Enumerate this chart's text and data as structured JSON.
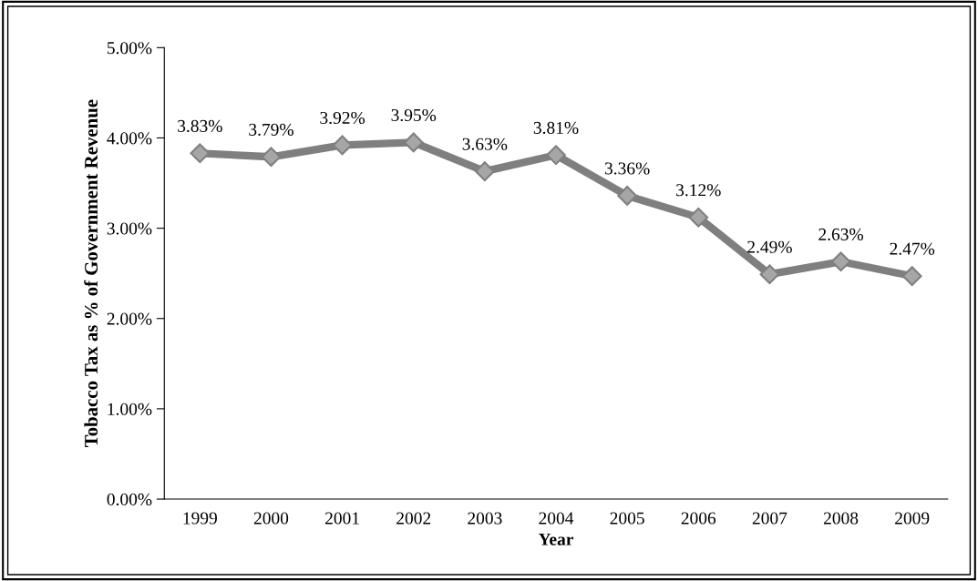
{
  "chart_data": {
    "type": "line",
    "xlabel": "Year",
    "ylabel": "Tobacco Tax as % of Government Revenue",
    "categories": [
      "1999",
      "2000",
      "2001",
      "2002",
      "2003",
      "2004",
      "2005",
      "2006",
      "2007",
      "2008",
      "2009"
    ],
    "series": [
      {
        "color": "#7f7f7f",
        "values": [
          3.83,
          3.79,
          3.92,
          3.95,
          3.63,
          3.81,
          3.36,
          3.12,
          2.49,
          2.63,
          2.47
        ],
        "value_labels": [
          "3.83%",
          "3.79%",
          "3.92%",
          "3.95%",
          "3.63%",
          "3.81%",
          "3.36%",
          "3.12%",
          "2.49%",
          "2.63%",
          "2.47%"
        ]
      }
    ],
    "ylim": [
      0,
      5
    ],
    "yticks": [
      {
        "value": 0,
        "label": "0.00%"
      },
      {
        "value": 1,
        "label": "1.00%"
      },
      {
        "value": 2,
        "label": "2.00%"
      },
      {
        "value": 3,
        "label": "3.00%"
      },
      {
        "value": 4,
        "label": "4.00%"
      },
      {
        "value": 5,
        "label": "5.00%"
      }
    ],
    "marker": "diamond",
    "line_style": "solid",
    "grid": false,
    "legend": false
  }
}
